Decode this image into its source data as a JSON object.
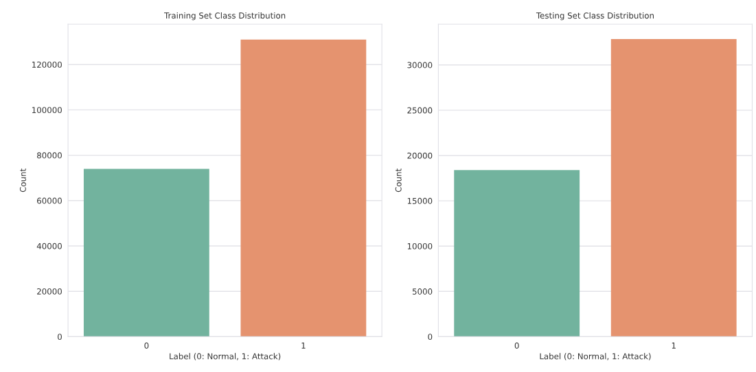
{
  "chart_data": [
    {
      "type": "bar",
      "title": "Training Set Class Distribution",
      "xlabel": "Label (0: Normal, 1: Attack)",
      "ylabel": "Count",
      "categories": [
        "0",
        "1"
      ],
      "values": [
        74000,
        131000
      ],
      "colors": [
        "#72b39e",
        "#e5936f"
      ],
      "ylim": [
        0,
        137800
      ],
      "yticks": [
        0,
        20000,
        40000,
        60000,
        80000,
        100000,
        120000
      ],
      "grid": "y"
    },
    {
      "type": "bar",
      "title": "Testing Set Class Distribution",
      "xlabel": "Label (0: Normal, 1: Attack)",
      "ylabel": "Count",
      "categories": [
        "0",
        "1"
      ],
      "values": [
        18400,
        32850
      ],
      "colors": [
        "#72b39e",
        "#e5936f"
      ],
      "ylim": [
        0,
        34500
      ],
      "yticks": [
        0,
        5000,
        10000,
        15000,
        20000,
        25000,
        30000
      ],
      "grid": "y"
    }
  ]
}
